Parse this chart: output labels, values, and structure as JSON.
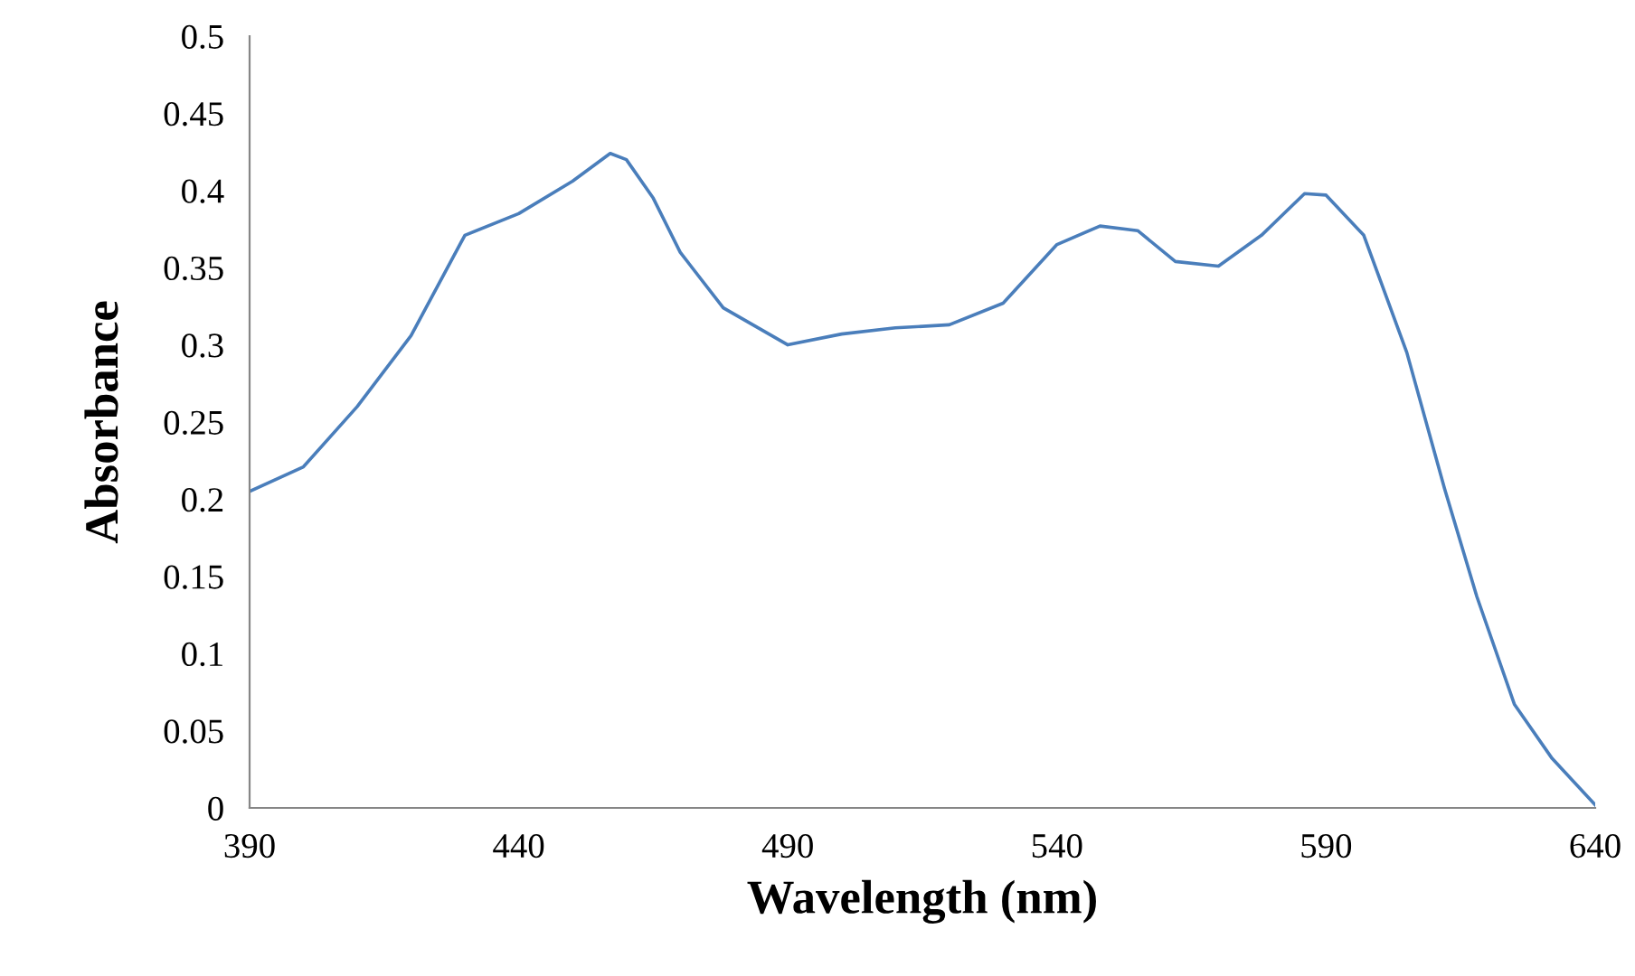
{
  "chart_data": {
    "type": "line",
    "xlabel": "Wavelength (nm)",
    "ylabel": "Absorbance",
    "x": [
      390,
      400,
      410,
      420,
      430,
      440,
      450,
      457,
      460,
      465,
      470,
      478,
      490,
      500,
      510,
      520,
      530,
      540,
      548,
      555,
      562,
      570,
      578,
      586,
      590,
      597,
      605,
      612,
      618,
      625,
      632,
      640
    ],
    "series": [
      {
        "color": "#4a7ebb",
        "values": [
          0.205,
          0.221,
          0.26,
          0.306,
          0.371,
          0.385,
          0.406,
          0.424,
          0.42,
          0.395,
          0.36,
          0.324,
          0.3,
          0.307,
          0.311,
          0.313,
          0.327,
          0.365,
          0.377,
          0.374,
          0.354,
          0.351,
          0.371,
          0.398,
          0.397,
          0.371,
          0.295,
          0.207,
          0.137,
          0.067,
          0.032,
          0.002
        ]
      }
    ],
    "xlim": [
      390,
      640
    ],
    "xticks": [
      390,
      440,
      490,
      540,
      590,
      640
    ],
    "ylim": [
      0,
      0.5
    ],
    "yticks": [
      0,
      0.05,
      0.1,
      0.15,
      0.2,
      0.25,
      0.3,
      0.35,
      0.4,
      0.45,
      0.5
    ],
    "grid": false,
    "marker": "none",
    "line_style": "solid"
  }
}
